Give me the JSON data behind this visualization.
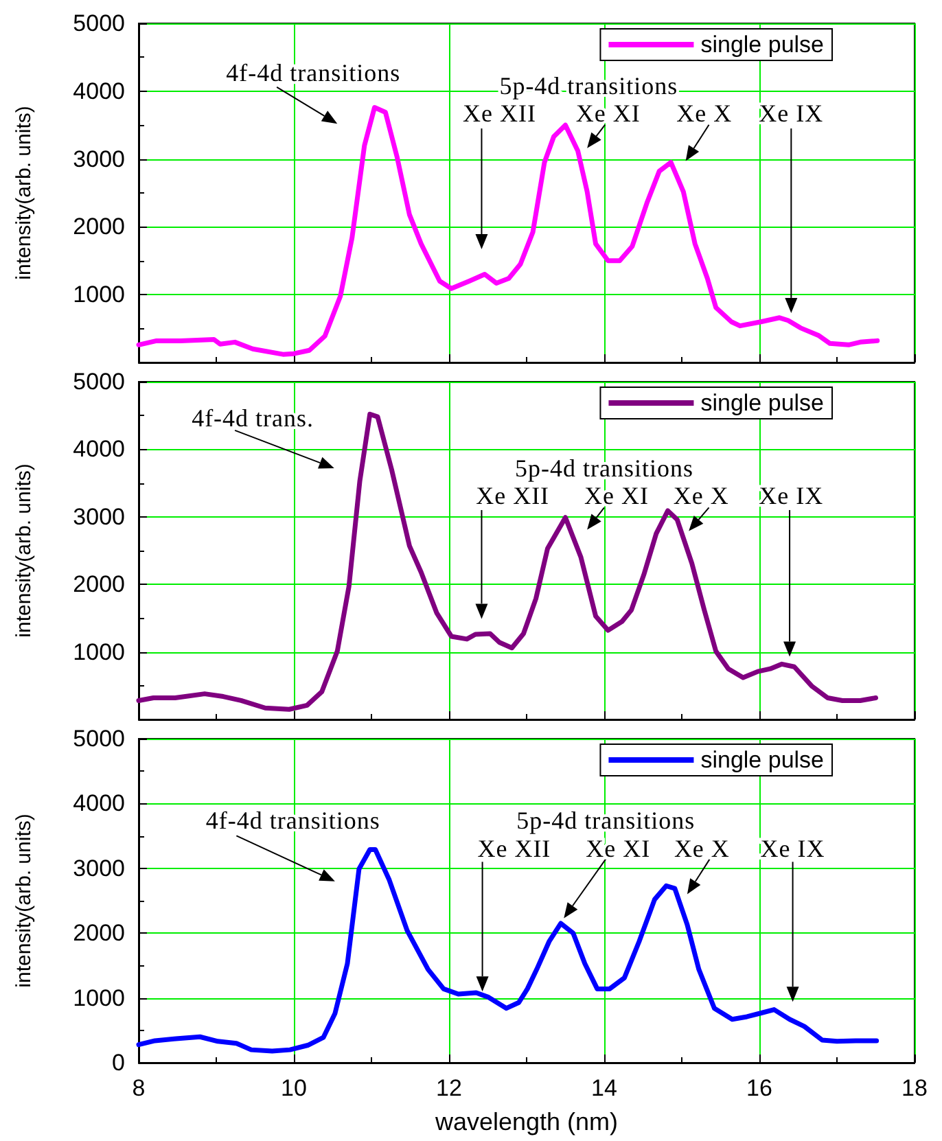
{
  "chart_data": [
    {
      "type": "line",
      "ylabel": "intensity(arb. units)",
      "xlim": [
        8,
        18
      ],
      "xticks": [
        8,
        10,
        12,
        14,
        16,
        18
      ],
      "ylim": [
        0,
        5000
      ],
      "yticks": [
        {
          "value": 0,
          "label": null
        },
        1000,
        2000,
        3000,
        4000,
        5000
      ],
      "tick_labels": "y",
      "grid": true,
      "legend": "top right",
      "marker": "none",
      "line_style": "solid",
      "series": [
        {
          "name": "single pulse",
          "color": "#ff00ff",
          "x": [
            8.0,
            8.23,
            8.54,
            8.97,
            9.05,
            9.24,
            9.47,
            9.86,
            10.0,
            10.2,
            10.4,
            10.6,
            10.75,
            10.91,
            11.04,
            11.18,
            11.33,
            11.49,
            11.64,
            11.88,
            12.03,
            12.26,
            12.46,
            12.61,
            12.77,
            12.92,
            13.08,
            13.23,
            13.35,
            13.5,
            13.66,
            13.78,
            13.89,
            14.05,
            14.2,
            14.36,
            14.55,
            14.71,
            14.86,
            15.02,
            15.17,
            15.33,
            15.44,
            15.64,
            15.75,
            16.02,
            16.26,
            16.37,
            16.53,
            16.76,
            16.91,
            17.15,
            17.3,
            17.52
          ],
          "values": [
            260,
            320,
            320,
            340,
            270,
            300,
            200,
            120,
            130,
            180,
            390,
            980,
            1840,
            3200,
            3760,
            3690,
            3030,
            2180,
            1750,
            1200,
            1090,
            1200,
            1300,
            1170,
            1240,
            1450,
            1920,
            2950,
            3330,
            3500,
            3120,
            2520,
            1750,
            1500,
            1500,
            1710,
            2350,
            2820,
            2950,
            2520,
            1750,
            1240,
            810,
            600,
            540,
            600,
            660,
            620,
            510,
            400,
            280,
            260,
            300,
            320
          ]
        }
      ],
      "annotations": [
        "4f-4d transitions",
        "5p-4d transitions",
        "Xe XII",
        "Xe XI",
        "Xe X",
        "Xe IX"
      ]
    },
    {
      "type": "line",
      "ylabel": "intensity(arb. units)",
      "xlim": [
        8,
        18
      ],
      "xticks": [
        8,
        10,
        12,
        14,
        16,
        18
      ],
      "ylim": [
        0,
        5000
      ],
      "yticks": [
        {
          "value": 0,
          "label": null
        },
        1000,
        2000,
        3000,
        4000,
        5000
      ],
      "tick_labels": "y",
      "grid": true,
      "legend": "top right",
      "marker": "none",
      "line_style": "solid",
      "series": [
        {
          "name": "single pulse",
          "color": "#800080",
          "x": [
            8.0,
            8.19,
            8.47,
            8.85,
            9.09,
            9.32,
            9.63,
            9.94,
            10.17,
            10.36,
            10.56,
            10.71,
            10.85,
            10.98,
            11.08,
            11.26,
            11.49,
            11.64,
            11.84,
            12.03,
            12.23,
            12.34,
            12.53,
            12.65,
            12.81,
            12.96,
            13.12,
            13.27,
            13.5,
            13.7,
            13.89,
            14.05,
            14.23,
            14.35,
            14.51,
            14.67,
            14.82,
            14.94,
            15.13,
            15.29,
            15.44,
            15.6,
            15.79,
            15.98,
            16.14,
            16.29,
            16.45,
            16.68,
            16.88,
            17.07,
            17.3,
            17.5
          ],
          "values": [
            280,
            320,
            320,
            380,
            340,
            280,
            170,
            150,
            210,
            410,
            1010,
            1970,
            3530,
            4520,
            4480,
            3700,
            2570,
            2180,
            1580,
            1230,
            1190,
            1260,
            1270,
            1140,
            1060,
            1270,
            1790,
            2530,
            2990,
            2400,
            1530,
            1320,
            1450,
            1620,
            2140,
            2750,
            3090,
            2960,
            2310,
            1620,
            1010,
            750,
            620,
            710,
            750,
            820,
            780,
            490,
            320,
            280,
            280,
            320
          ]
        }
      ],
      "annotations": [
        "4f-4d trans.",
        "5p-4d transitions",
        "Xe XII",
        "Xe XI",
        "Xe X",
        "Xe IX"
      ]
    },
    {
      "type": "line",
      "xlabel": "wavelength (nm)",
      "ylabel": "intensity(arb. units)",
      "xlim": [
        8,
        18
      ],
      "xticks": [
        8,
        10,
        12,
        14,
        16,
        18
      ],
      "ylim": [
        0,
        5000
      ],
      "yticks": [
        0,
        1000,
        2000,
        3000,
        4000,
        5000
      ],
      "grid": true,
      "legend": "top right",
      "marker": "none",
      "line_style": "solid",
      "series": [
        {
          "name": "single pulse",
          "color": "#0000ff",
          "x": [
            8.0,
            8.21,
            8.48,
            8.79,
            9.02,
            9.26,
            9.45,
            9.72,
            9.95,
            10.18,
            10.38,
            10.53,
            10.69,
            10.84,
            10.98,
            11.05,
            11.23,
            11.46,
            11.73,
            11.93,
            12.12,
            12.35,
            12.51,
            12.74,
            12.9,
            13.01,
            13.13,
            13.29,
            13.44,
            13.6,
            13.75,
            13.91,
            14.07,
            14.26,
            14.45,
            14.65,
            14.8,
            14.91,
            15.07,
            15.22,
            15.42,
            15.65,
            15.84,
            16.0,
            16.19,
            16.39,
            16.58,
            16.81,
            17.0,
            17.24,
            17.51
          ],
          "values": [
            280,
            340,
            370,
            400,
            330,
            300,
            200,
            180,
            200,
            270,
            390,
            760,
            1530,
            2990,
            3290,
            3290,
            2820,
            2040,
            1440,
            1140,
            1060,
            1080,
            1010,
            840,
            930,
            1140,
            1440,
            1870,
            2150,
            2000,
            1530,
            1140,
            1140,
            1310,
            1870,
            2520,
            2730,
            2690,
            2130,
            1440,
            840,
            670,
            710,
            760,
            820,
            670,
            560,
            350,
            330,
            340,
            340
          ]
        }
      ],
      "annotations": [
        "4f-4d transitions",
        "5p-4d transitions",
        "Xe XII",
        "Xe XI",
        "Xe X",
        "Xe IX"
      ]
    }
  ]
}
